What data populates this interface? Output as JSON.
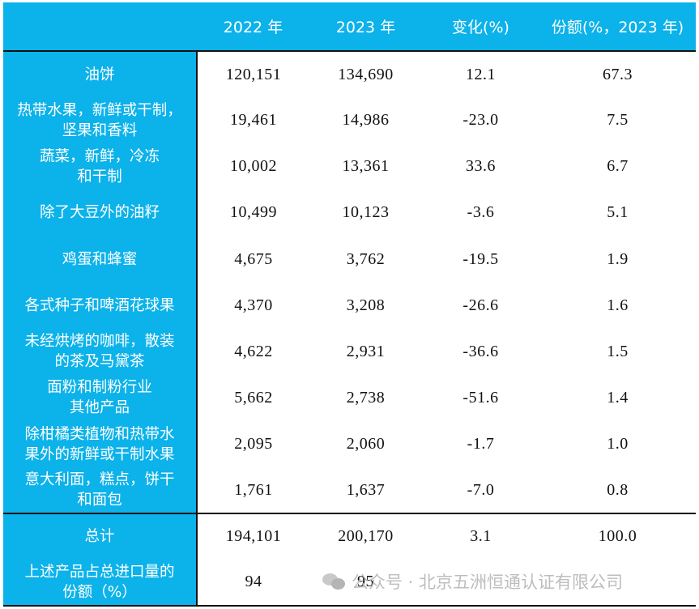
{
  "table": {
    "headers": [
      "",
      "2022 年",
      "2023 年",
      "变化(%)",
      "份额(%，2023 年)"
    ],
    "rows": [
      {
        "label": "油饼",
        "v2022": "120,151",
        "v2023": "134,690",
        "change": "12.1",
        "share": "67.3"
      },
      {
        "label": "热带水果，新鲜或干制，\n坚果和香料",
        "v2022": "19,461",
        "v2023": "14,986",
        "change": "-23.0",
        "share": "7.5"
      },
      {
        "label": "蔬菜，新鲜，冷冻\n和干制",
        "v2022": "10,002",
        "v2023": "13,361",
        "change": "33.6",
        "share": "6.7"
      },
      {
        "label": "除了大豆外的油籽",
        "v2022": "10,499",
        "v2023": "10,123",
        "change": "-3.6",
        "share": "5.1"
      },
      {
        "label": "鸡蛋和蜂蜜",
        "v2022": "4,675",
        "v2023": "3,762",
        "change": "-19.5",
        "share": "1.9"
      },
      {
        "label": "各式种子和啤酒花球果",
        "v2022": "4,370",
        "v2023": "3,208",
        "change": "-26.6",
        "share": "1.6"
      },
      {
        "label": "未经烘烤的咖啡，散装\n的茶及马黛茶",
        "v2022": "4,622",
        "v2023": "2,931",
        "change": "-36.6",
        "share": "1.5"
      },
      {
        "label": "面粉和制粉行业\n其他产品",
        "v2022": "5,662",
        "v2023": "2,738",
        "change": "-51.6",
        "share": "1.4"
      },
      {
        "label": "除柑橘类植物和热带水\n果外的新鲜或干制水果",
        "v2022": "2,095",
        "v2023": "2,060",
        "change": "-1.7",
        "share": "1.0"
      },
      {
        "label": "意大利面，糕点，饼干\n和面包",
        "v2022": "1,761",
        "v2023": "1,637",
        "change": "-7.0",
        "share": "0.8"
      }
    ],
    "total": {
      "label": "总计",
      "v2022": "194,101",
      "v2023": "200,170",
      "change": "3.1",
      "share": "100.0"
    },
    "share_row": {
      "label": "上述产品占总进口量的\n份额（%）",
      "v2022": "94",
      "v2023": "95"
    }
  },
  "watermark": {
    "icon": "wechat-icon",
    "text": "公众号 · 北京五洲恒通认证有限公司"
  }
}
